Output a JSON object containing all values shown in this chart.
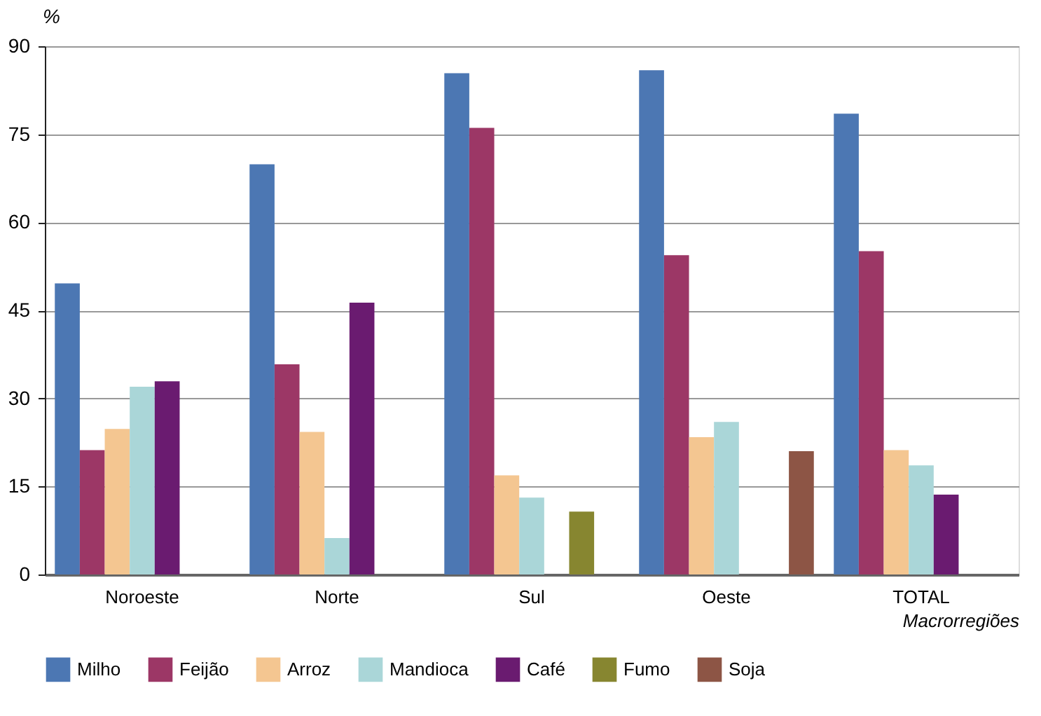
{
  "chart_data": {
    "type": "bar",
    "ylabel": "%",
    "xlabel": "Macrorregiões",
    "categories": [
      "Noroeste",
      "Norte",
      "Sul",
      "Oeste",
      "TOTAL"
    ],
    "series": [
      {
        "name": "Milho",
        "color": "#4c77b3",
        "values": [
          49.6,
          69.9,
          85.4,
          85.9,
          78.5
        ]
      },
      {
        "name": "Feijão",
        "color": "#9c3766",
        "values": [
          21.2,
          35.8,
          76.1,
          54.4,
          55.1
        ]
      },
      {
        "name": "Arroz",
        "color": "#f4c691",
        "values": [
          24.8,
          24.3,
          16.9,
          23.4,
          21.2
        ]
      },
      {
        "name": "Mandioca",
        "color": "#aad6d8",
        "values": [
          32.0,
          6.2,
          13.1,
          26.0,
          18.6
        ]
      },
      {
        "name": "Café",
        "color": "#6a1b70",
        "values": [
          32.9,
          46.3,
          null,
          null,
          13.6
        ]
      },
      {
        "name": "Fumo",
        "color": "#878630",
        "values": [
          null,
          null,
          10.7,
          null,
          null
        ]
      },
      {
        "name": "Soja",
        "color": "#8d5545",
        "values": [
          null,
          null,
          null,
          21.0,
          null
        ]
      }
    ],
    "ylim": [
      0,
      90
    ],
    "yticks": [
      0,
      15,
      30,
      45,
      60,
      75,
      90
    ],
    "grid": "y",
    "legend": "bottom"
  }
}
